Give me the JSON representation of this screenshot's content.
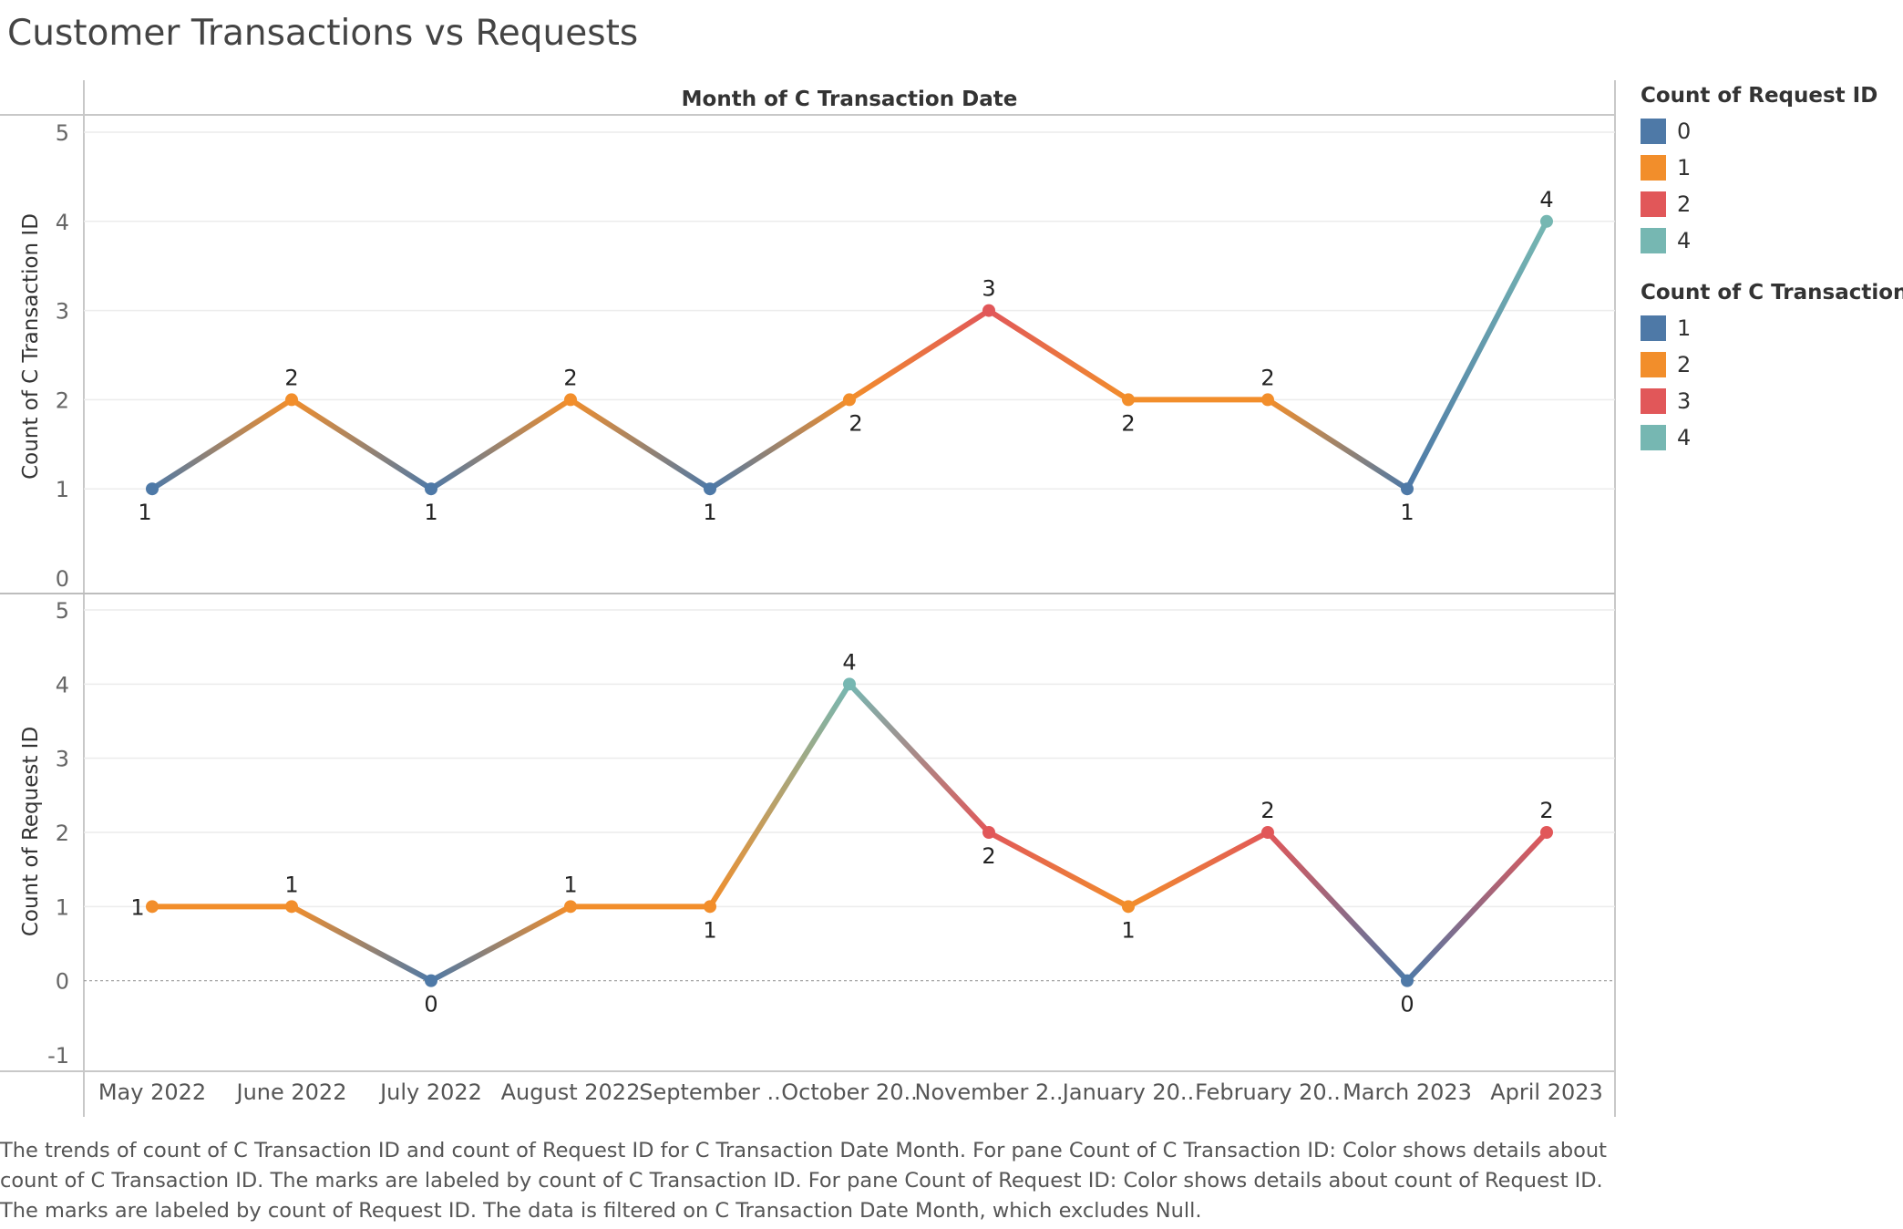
{
  "title": "Customer Transactions vs Requests",
  "header": "Month of C Transaction Date",
  "colors": {
    "c0": "#4e79a7",
    "c1": "#f28e2b",
    "c2": "#e15759",
    "c4": "#76b7b2"
  },
  "legends": [
    {
      "title": "Count of Request ID",
      "items": [
        {
          "label": "0",
          "color": "#4e79a7"
        },
        {
          "label": "1",
          "color": "#f28e2b"
        },
        {
          "label": "2",
          "color": "#e15759"
        },
        {
          "label": "4",
          "color": "#76b7b2"
        }
      ]
    },
    {
      "title": "Count of C Transaction ID",
      "items": [
        {
          "label": "1",
          "color": "#4e79a7"
        },
        {
          "label": "2",
          "color": "#f28e2b"
        },
        {
          "label": "3",
          "color": "#e15759"
        },
        {
          "label": "4",
          "color": "#76b7b2"
        }
      ]
    }
  ],
  "caption": [
    "The trends of count of C Transaction ID and count of Request ID for C Transaction Date Month.  For pane Count of C Transaction ID:  Color shows details about",
    "count of C Transaction ID.  The marks are labeled by count of C Transaction ID.  For pane Count of Request ID:  Color shows details about count of Request ID.",
    "The marks are labeled by count of Request ID. The data is filtered on C Transaction Date Month, which excludes Null."
  ],
  "chart_data": {
    "type": "line",
    "categories": [
      "May 2022",
      "June 2022",
      "July 2022",
      "August 2022",
      "September ..",
      "October 20..",
      "November 2..",
      "January 20..",
      "February 20..",
      "March 2023",
      "April 2023"
    ],
    "series": [
      {
        "name": "Count of C Transaction ID",
        "values": [
          1,
          2,
          1,
          2,
          1,
          2,
          3,
          2,
          2,
          1,
          4
        ],
        "ylim": [
          0,
          5
        ],
        "yticks": [
          0,
          1,
          2,
          3,
          4,
          5
        ]
      },
      {
        "name": "Count of Request ID",
        "values": [
          1,
          1,
          0,
          1,
          1,
          4,
          2,
          1,
          2,
          0,
          2
        ],
        "ylim": [
          -1,
          5
        ],
        "yticks": [
          -1,
          0,
          1,
          2,
          3,
          4,
          5
        ]
      }
    ]
  }
}
